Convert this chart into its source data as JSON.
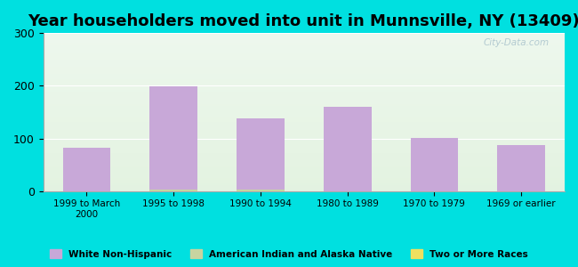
{
  "title": "Year householders moved into unit in Munnsville, NY (13409)",
  "categories": [
    "1999 to March\n2000",
    "1995 to 1998",
    "1990 to 1994",
    "1980 to 1989",
    "1970 to 1979",
    "1969 or earlier"
  ],
  "white_non_hispanic": [
    83,
    199,
    138,
    160,
    101,
    88
  ],
  "american_indian": [
    0,
    2,
    2,
    0,
    0,
    0
  ],
  "two_or_more": [
    0,
    0,
    0,
    0,
    0,
    0
  ],
  "bar_color_white": "#c8a8d8",
  "bar_color_indian": "#c8d4a0",
  "bar_color_two": "#f0e060",
  "ylim": [
    0,
    300
  ],
  "yticks": [
    0,
    100,
    200,
    300
  ],
  "outer_bg": "#00e0e0",
  "legend_labels": [
    "White Non-Hispanic",
    "American Indian and Alaska Native",
    "Two or More Races"
  ],
  "legend_colors": [
    "#c8a8d8",
    "#c8d4a0",
    "#f0e060"
  ],
  "title_fontsize": 13,
  "watermark": "City-Data.com"
}
